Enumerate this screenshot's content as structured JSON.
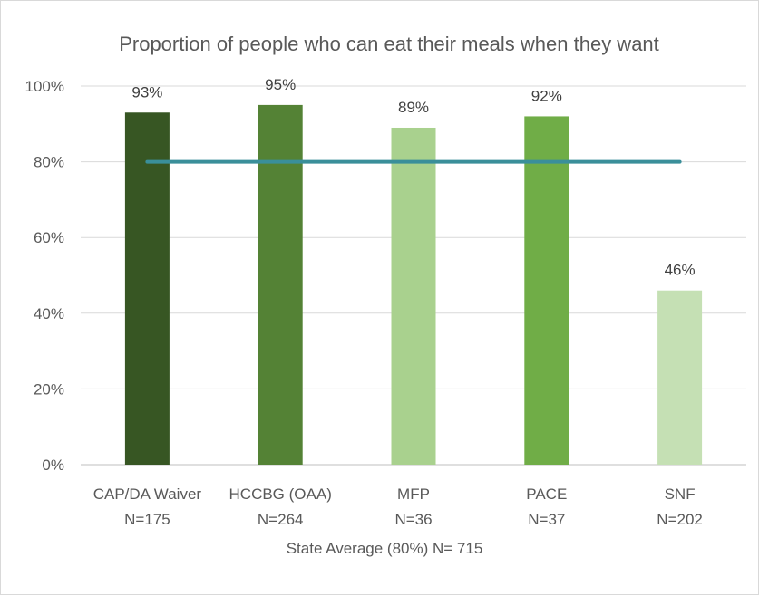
{
  "chart_data": {
    "type": "bar",
    "title": "Proportion of people who can eat their meals when they want",
    "xlabel": "State Average (80%) N= 715",
    "ylabel": "",
    "ylim": [
      0,
      100
    ],
    "yticks": [
      "0%",
      "20%",
      "40%",
      "60%",
      "80%",
      "100%"
    ],
    "categories": [
      {
        "name": "CAP/DA Waiver",
        "n": "N=175"
      },
      {
        "name": "HCCBG (OAA)",
        "n": "N=264"
      },
      {
        "name": "MFP",
        "n": "N=36"
      },
      {
        "name": "PACE",
        "n": "N=37"
      },
      {
        "name": "SNF",
        "n": "N=202"
      }
    ],
    "values": [
      93,
      95,
      89,
      92,
      46
    ],
    "value_labels": [
      "93%",
      "95%",
      "89%",
      "92%",
      "46%"
    ],
    "bar_colors": [
      "#375623",
      "#548235",
      "#a9d18e",
      "#70ad47",
      "#c5e0b4"
    ],
    "reference_line": {
      "value": 80,
      "color": "#3a8f9a"
    },
    "grid": true,
    "legend": "none"
  }
}
